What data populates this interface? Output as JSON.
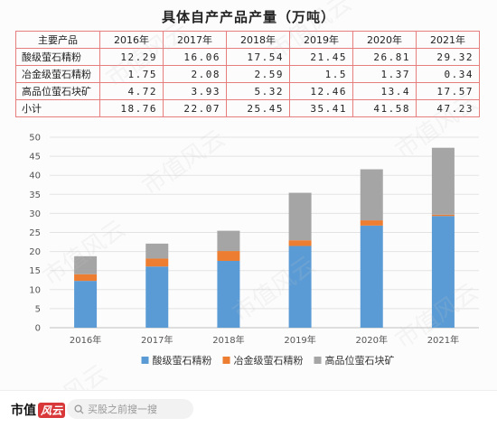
{
  "table": {
    "title": "具体自产产品产量（万吨）",
    "header": [
      "主要产品",
      "2016年",
      "2017年",
      "2018年",
      "2019年",
      "2020年",
      "2021年"
    ],
    "rows": [
      {
        "label": "酸级萤石精粉",
        "values": [
          "12.29",
          "16.06",
          "17.54",
          "21.45",
          "26.81",
          "29.32"
        ]
      },
      {
        "label": "冶金级萤石精粉",
        "values": [
          "1.75",
          "2.08",
          "2.59",
          "1.5",
          "1.37",
          "0.34"
        ]
      },
      {
        "label": "高品位萤石块矿",
        "values": [
          "4.72",
          "3.93",
          "5.32",
          "12.46",
          "13.4",
          "17.57"
        ]
      },
      {
        "label": "小计",
        "values": [
          "18.76",
          "22.07",
          "25.45",
          "35.41",
          "41.58",
          "47.23"
        ]
      }
    ]
  },
  "chart_data": {
    "type": "bar",
    "stacked": true,
    "categories": [
      "2016年",
      "2017年",
      "2018年",
      "2019年",
      "2020年",
      "2021年"
    ],
    "series": [
      {
        "name": "酸级萤石精粉",
        "values": [
          12.29,
          16.06,
          17.54,
          21.45,
          26.81,
          29.32
        ],
        "color": "#5b9bd5"
      },
      {
        "name": "冶金级萤石精粉",
        "values": [
          1.75,
          2.08,
          2.59,
          1.5,
          1.37,
          0.34
        ],
        "color": "#ed7d31"
      },
      {
        "name": "高品位萤石块矿",
        "values": [
          4.72,
          3.93,
          5.32,
          12.46,
          13.4,
          17.57
        ],
        "color": "#a5a5a5"
      }
    ],
    "ylim": [
      0,
      50
    ],
    "yticks": [
      0,
      5,
      10,
      15,
      20,
      25,
      30,
      35,
      40,
      45,
      50
    ],
    "grid": true,
    "legend_position": "bottom",
    "title": "",
    "xlabel": "",
    "ylabel": ""
  },
  "footer": {
    "brand": "市值",
    "brand_mark": "风云",
    "search_placeholder": "买股之前搜一搜"
  },
  "watermark": "市值风云"
}
